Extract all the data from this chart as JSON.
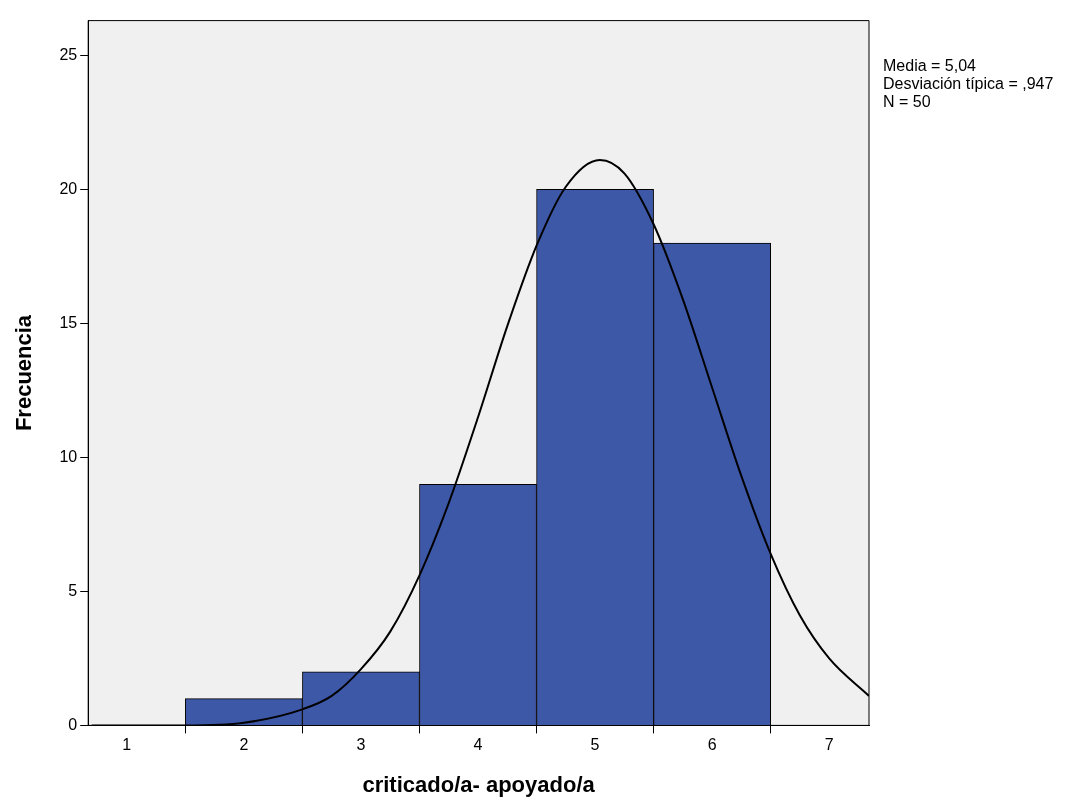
{
  "chart_data": {
    "type": "histogram",
    "xlabel": "criticado/a- apoyado/a",
    "ylabel": "Frecuencia",
    "bins": [
      1.5,
      2.5,
      3.5,
      4.5,
      5.5,
      6.5
    ],
    "values": [
      1,
      2,
      9,
      20,
      18
    ],
    "color": "#3e58a8",
    "series": [
      {
        "type": "line",
        "color": "#000000",
        "x": [
          0.7,
          1,
          1.5,
          2,
          2.5,
          2.75,
          3,
          3.25,
          3.5,
          3.75,
          4,
          4.25,
          4.5,
          4.75,
          5.04,
          5.25,
          5.5,
          5.75,
          6,
          6.25,
          6.5,
          6.75,
          7,
          7.34
        ],
        "values": [
          0,
          0,
          0,
          0.1,
          0.6,
          1.1,
          2.1,
          3.5,
          5.6,
          8.3,
          11.5,
          14.9,
          17.9,
          20.1,
          21.1,
          20.6,
          18.7,
          15.9,
          12.6,
          9.3,
          6.4,
          4.1,
          2.5,
          1.1
        ]
      }
    ],
    "xlim": [
      0.67,
      7.34
    ],
    "xticks": [
      1,
      2,
      3,
      4,
      5,
      6,
      7
    ],
    "ylim": [
      0,
      26.3
    ],
    "yticks": [
      0,
      5,
      10,
      15,
      20,
      25
    ],
    "grid": false,
    "legend": false,
    "marker": "none",
    "line_style": "solid",
    "annotations": [
      "Media = 5,04",
      "Desviación típica = ,947",
      "N = 50"
    ]
  }
}
